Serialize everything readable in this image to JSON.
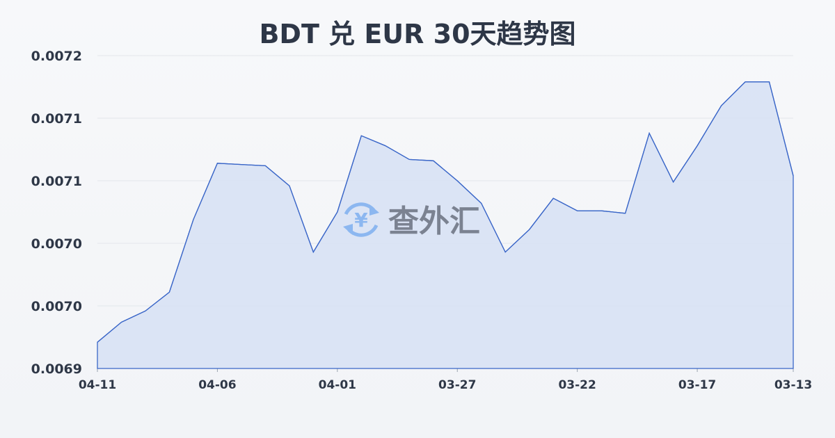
{
  "chart_data": {
    "type": "area",
    "title": "BDT 兑 EUR 30天趋势图",
    "xlabel": "",
    "ylabel": "",
    "ylim": [
      0.00695,
      0.0072
    ],
    "yticks": [
      0.00695,
      0.007,
      0.00705,
      0.0071,
      0.00715,
      0.0072
    ],
    "ytick_labels": [
      "0.0069",
      "0.0070",
      "0.0070",
      "0.0071",
      "0.0071",
      "0.0072"
    ],
    "xtick_labels": [
      "04-11",
      "04-06",
      "04-01",
      "03-27",
      "03-22",
      "03-17",
      "03-13"
    ],
    "xtick_indices": [
      0,
      5,
      10,
      15,
      20,
      25,
      29
    ],
    "x": [
      "04-11",
      "04-10",
      "04-09",
      "04-08",
      "04-07",
      "04-06",
      "04-05",
      "04-04",
      "04-03",
      "04-02",
      "04-01",
      "03-31",
      "03-30",
      "03-29",
      "03-28",
      "03-27",
      "03-26",
      "03-25",
      "03-24",
      "03-23",
      "03-22",
      "03-21",
      "03-20",
      "03-19",
      "03-18",
      "03-17",
      "03-16",
      "03-15",
      "03-14",
      "03-13"
    ],
    "values": [
      0.006971,
      0.006987,
      0.006996,
      0.007011,
      0.007069,
      0.007114,
      0.007113,
      0.007112,
      0.007096,
      0.007043,
      0.007075,
      0.007136,
      0.007128,
      0.007117,
      0.007116,
      0.0071,
      0.007082,
      0.007043,
      0.007061,
      0.007086,
      0.007076,
      0.007076,
      0.007074,
      0.007138,
      0.007099,
      0.007128,
      0.00716,
      0.007179,
      0.007179,
      0.007104
    ],
    "grid": true,
    "legend": "none",
    "colors": {
      "line": "#3a66c8",
      "fill": "#d6e0f5",
      "grid": "#e3e6eb",
      "text": "#2e3747"
    }
  },
  "watermark": {
    "text": "查外汇",
    "icon": "yen-exchange-icon",
    "icon_color": "#7fb0f0"
  }
}
